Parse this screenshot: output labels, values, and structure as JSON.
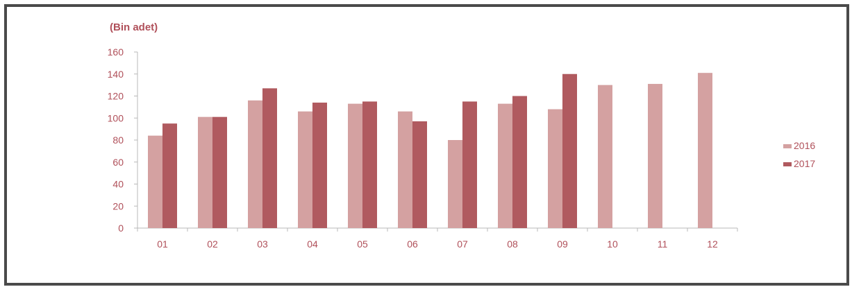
{
  "chart_data": {
    "type": "bar",
    "unit_label": "(Bin adet)",
    "categories": [
      "01",
      "02",
      "03",
      "04",
      "05",
      "06",
      "07",
      "08",
      "09",
      "10",
      "11",
      "12"
    ],
    "series": [
      {
        "name": "2016",
        "color": "#d4a1a1",
        "values": [
          84,
          101,
          116,
          106,
          113,
          106,
          80,
          113,
          108,
          130,
          131,
          141
        ]
      },
      {
        "name": "2017",
        "color": "#b05a5f",
        "values": [
          95,
          101,
          127,
          114,
          115,
          97,
          115,
          120,
          140,
          null,
          null,
          null
        ]
      }
    ],
    "ylim": [
      0,
      160
    ],
    "yticks": [
      0,
      20,
      40,
      60,
      80,
      100,
      120,
      140,
      160
    ],
    "grid": false,
    "legend_position": "right"
  }
}
